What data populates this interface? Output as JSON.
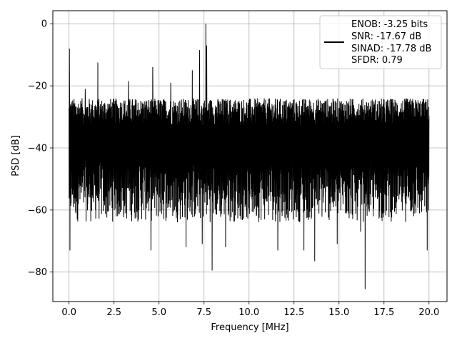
{
  "chart_data": {
    "type": "line",
    "title": "",
    "xlabel": "Frequency [MHz]",
    "ylabel": "PSD [dB]",
    "xlim": [
      -0.9,
      21.0
    ],
    "ylim": [
      -89.5,
      4.2
    ],
    "grid": true,
    "line_color": "#000000",
    "x_ticks": [
      0.0,
      2.5,
      5.0,
      7.5,
      10.0,
      12.5,
      15.0,
      17.5,
      20.0
    ],
    "x_tick_labels": [
      "0.0",
      "2.5",
      "5.0",
      "7.5",
      "10.0",
      "12.5",
      "15.0",
      "17.5",
      "20.0"
    ],
    "y_ticks": [
      0,
      -20,
      -40,
      -60,
      -80
    ],
    "y_tick_labels": [
      "0",
      "−20",
      "−40",
      "−60",
      "−80"
    ],
    "x_range": [
      0.0,
      20.0
    ],
    "noise_upper_band": [
      -33,
      -24
    ],
    "noise_lower_band": [
      -64,
      -44
    ],
    "spikes": [
      {
        "x": 0.02,
        "y": -8
      },
      {
        "x": 0.05,
        "y": -73
      },
      {
        "x": 1.6,
        "y": -12.5
      },
      {
        "x": 0.9,
        "y": -21
      },
      {
        "x": 3.3,
        "y": -18.5
      },
      {
        "x": 4.65,
        "y": -14
      },
      {
        "x": 4.55,
        "y": -73
      },
      {
        "x": 5.65,
        "y": -19
      },
      {
        "x": 6.85,
        "y": -15
      },
      {
        "x": 6.5,
        "y": -72
      },
      {
        "x": 7.25,
        "y": -8.5
      },
      {
        "x": 7.6,
        "y": 0
      },
      {
        "x": 7.65,
        "y": -7
      },
      {
        "x": 7.95,
        "y": -79.5
      },
      {
        "x": 7.4,
        "y": -71
      },
      {
        "x": 8.7,
        "y": -72
      },
      {
        "x": 11.6,
        "y": -73
      },
      {
        "x": 13.05,
        "y": -73
      },
      {
        "x": 13.65,
        "y": -76.5
      },
      {
        "x": 14.9,
        "y": -71
      },
      {
        "x": 16.45,
        "y": -85.5
      },
      {
        "x": 16.2,
        "y": -67
      },
      {
        "x": 19.9,
        "y": -73
      }
    ],
    "legend": {
      "placement": "top-right",
      "entries": [
        {
          "label": "ENOB: -3.25 bits"
        },
        {
          "label": "SNR: -17.67 dB"
        },
        {
          "label": "SINAD: -17.78 dB"
        },
        {
          "label": "SFDR: 0.79"
        }
      ]
    }
  }
}
